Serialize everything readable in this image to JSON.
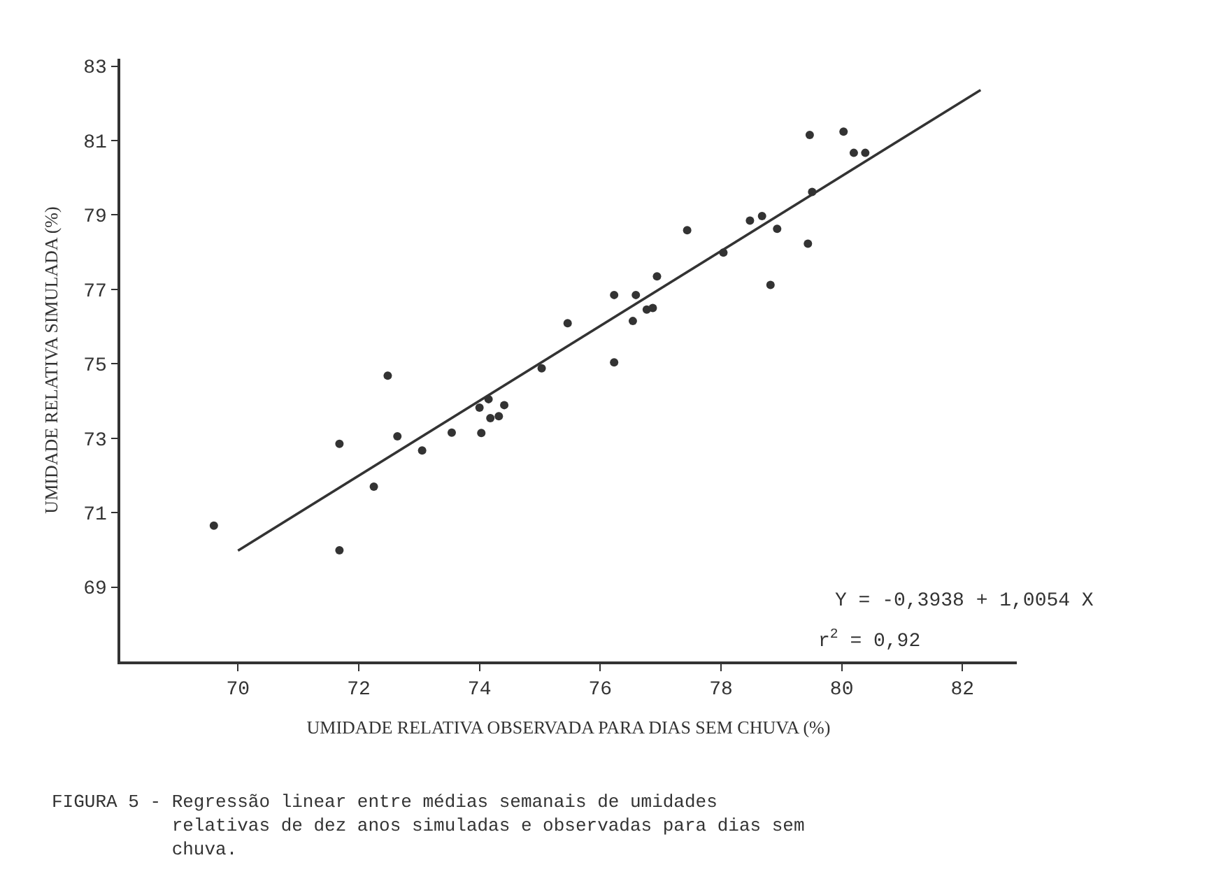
{
  "chart_data": {
    "type": "scatter",
    "xlabel": "UMIDADE RELATIVA OBSERVADA PARA DIAS SEM CHUVA (%)",
    "ylabel": "UMIDADE RELATIVA SIMULADA (%)",
    "xlim": [
      68.05,
      82.9
    ],
    "ylim": [
      67.0,
      83.2
    ],
    "xticks": [
      70,
      72,
      74,
      76,
      78,
      80,
      82
    ],
    "yticks": [
      69,
      71,
      73,
      75,
      77,
      79,
      81,
      83
    ],
    "marker": "circle",
    "series": [
      {
        "color": "#333333",
        "x": [
          69.6,
          71.68,
          71.68,
          72.25,
          72.48,
          72.64,
          73.05,
          73.54,
          74.0,
          74.03,
          74.15,
          74.18,
          74.32,
          74.41,
          75.03,
          75.46,
          76.23,
          76.23,
          76.54,
          76.59,
          76.77,
          76.87,
          76.94,
          77.44,
          78.04,
          78.48,
          78.68,
          78.82,
          78.93,
          79.44,
          79.47,
          79.51,
          80.03,
          80.2,
          80.39
        ],
        "values": [
          70.65,
          72.85,
          69.99,
          71.7,
          74.68,
          73.05,
          72.67,
          73.15,
          73.82,
          73.14,
          74.05,
          73.54,
          73.59,
          73.89,
          74.88,
          76.09,
          76.85,
          75.04,
          76.15,
          76.85,
          76.46,
          76.5,
          77.35,
          78.59,
          77.99,
          78.85,
          78.97,
          77.12,
          78.63,
          78.23,
          81.15,
          79.62,
          81.24,
          80.67,
          80.67
        ]
      },
      {
        "type": "line",
        "color": "#333333",
        "marker": "none",
        "line_style": "solid",
        "x": [
          70.0,
          82.3
        ],
        "values": [
          69.98,
          82.36
        ]
      }
    ],
    "annotations": [
      "Y = -0,3938 + 1,0054 X",
      "r$^{2}$ = 0,92",
      "FIGURA 5 - Regressão linear entre médias semanais de umidades relativas de dez anos simuladas e observadas para dias sem chuva."
    ]
  }
}
